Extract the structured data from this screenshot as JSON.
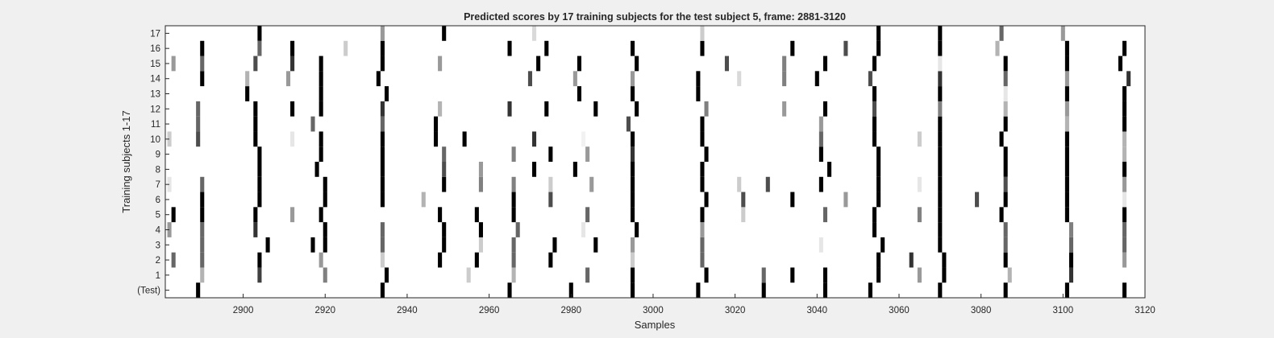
{
  "chart_data": {
    "type": "heatmap",
    "title": "Predicted scores by 17 training subjects for the test subject 5, frame: 2881-3120",
    "xlabel": "Samples",
    "ylabel": "Training subjects 1-17",
    "xlim": [
      2881,
      3120
    ],
    "xticks": [
      2900,
      2920,
      2940,
      2960,
      2980,
      3000,
      3020,
      3040,
      3060,
      3080,
      3100,
      3120
    ],
    "row_labels": [
      "(Test)",
      "1",
      "2",
      "3",
      "4",
      "5",
      "6",
      "7",
      "8",
      "9",
      "10",
      "11",
      "12",
      "13",
      "14",
      "15",
      "16",
      "17"
    ],
    "colormap": "gray, white = 0, black = 1",
    "value_range": [
      0,
      1
    ],
    "rows": [
      {
        "label": "(Test)",
        "marks": [
          [
            2889,
            1
          ],
          [
            2934,
            1
          ],
          [
            2965,
            1
          ],
          [
            2980,
            1
          ],
          [
            2995,
            1
          ],
          [
            3011,
            1
          ],
          [
            3027,
            1
          ],
          [
            3042,
            1
          ],
          [
            3053,
            1
          ],
          [
            3070,
            1
          ],
          [
            3086,
            1
          ],
          [
            3101,
            1
          ],
          [
            3115,
            1
          ]
        ]
      },
      {
        "label": "1",
        "marks": [
          [
            2890,
            0.3
          ],
          [
            2904,
            0.75
          ],
          [
            2920,
            0.5
          ],
          [
            2935,
            1
          ],
          [
            2955,
            0.2
          ],
          [
            2966,
            0.3
          ],
          [
            2984,
            0.6
          ],
          [
            2995,
            1
          ],
          [
            3013,
            1
          ],
          [
            3027,
            0.6
          ],
          [
            3034,
            1
          ],
          [
            3042,
            1
          ],
          [
            3055,
            1
          ],
          [
            3065,
            0.4
          ],
          [
            3071,
            1
          ],
          [
            3087,
            0.3
          ],
          [
            3102,
            0.8
          ]
        ]
      },
      {
        "label": "2",
        "marks": [
          [
            2883,
            0.6
          ],
          [
            2890,
            0.6
          ],
          [
            2904,
            1
          ],
          [
            2919,
            0.4
          ],
          [
            2934,
            0.2
          ],
          [
            2948,
            1
          ],
          [
            2957,
            1
          ],
          [
            2966,
            0.6
          ],
          [
            2975,
            1
          ],
          [
            2995,
            0.2
          ],
          [
            3012,
            0.6
          ],
          [
            3055,
            1
          ],
          [
            3063,
            0.8
          ],
          [
            3071,
            1
          ],
          [
            3086,
            1
          ],
          [
            3102,
            1
          ],
          [
            3115,
            0.4
          ]
        ]
      },
      {
        "label": "3",
        "marks": [
          [
            2890,
            0.6
          ],
          [
            2906,
            1
          ],
          [
            2917,
            1
          ],
          [
            2920,
            1
          ],
          [
            2934,
            0.6
          ],
          [
            2949,
            1
          ],
          [
            2958,
            0.2
          ],
          [
            2966,
            0.6
          ],
          [
            2976,
            1
          ],
          [
            2986,
            1
          ],
          [
            2995,
            0.4
          ],
          [
            3012,
            0.6
          ],
          [
            3041,
            0.1
          ],
          [
            3056,
            1
          ],
          [
            3070,
            1
          ],
          [
            3086,
            0.6
          ],
          [
            3102,
            0.6
          ],
          [
            3115,
            0.6
          ]
        ]
      },
      {
        "label": "4",
        "marks": [
          [
            2882,
            0.4
          ],
          [
            2890,
            0.6
          ],
          [
            2903,
            0.8
          ],
          [
            2920,
            1
          ],
          [
            2934,
            0.6
          ],
          [
            2949,
            1
          ],
          [
            2958,
            1
          ],
          [
            2967,
            0.6
          ],
          [
            2983,
            0.1
          ],
          [
            2996,
            1
          ],
          [
            3012,
            0.4
          ],
          [
            3054,
            1
          ],
          [
            3070,
            1
          ],
          [
            3086,
            0.6
          ],
          [
            3102,
            0.5
          ],
          [
            3115,
            0.6
          ]
        ]
      },
      {
        "label": "5",
        "marks": [
          [
            2883,
            1
          ],
          [
            2890,
            1
          ],
          [
            2903,
            1
          ],
          [
            2912,
            0.4
          ],
          [
            2919,
            1
          ],
          [
            2948,
            1
          ],
          [
            2957,
            1
          ],
          [
            2966,
            1
          ],
          [
            2984,
            0.6
          ],
          [
            2995,
            1
          ],
          [
            3012,
            1
          ],
          [
            3022,
            0.2
          ],
          [
            3042,
            0.6
          ],
          [
            3054,
            1
          ],
          [
            3065,
            0.5
          ],
          [
            3070,
            1
          ],
          [
            3085,
            1
          ],
          [
            3101,
            1
          ],
          [
            3115,
            1
          ]
        ]
      },
      {
        "label": "6",
        "marks": [
          [
            2890,
            1
          ],
          [
            2904,
            1
          ],
          [
            2920,
            1
          ],
          [
            2934,
            1
          ],
          [
            2944,
            0.3
          ],
          [
            2966,
            1
          ],
          [
            2975,
            0.7
          ],
          [
            2995,
            1
          ],
          [
            3013,
            1
          ],
          [
            3022,
            0.7
          ],
          [
            3034,
            1
          ],
          [
            3047,
            0.4
          ],
          [
            3055,
            1
          ],
          [
            3070,
            1
          ],
          [
            3079,
            0.7
          ],
          [
            3086,
            1
          ],
          [
            3101,
            1
          ],
          [
            3115,
            0.1
          ]
        ]
      },
      {
        "label": "7",
        "marks": [
          [
            2882,
            0.1
          ],
          [
            2890,
            0.6
          ],
          [
            2904,
            1
          ],
          [
            2920,
            1
          ],
          [
            2934,
            1
          ],
          [
            2949,
            1
          ],
          [
            2958,
            0.5
          ],
          [
            2966,
            0.5
          ],
          [
            2975,
            0.2
          ],
          [
            2985,
            0.4
          ],
          [
            2995,
            1
          ],
          [
            3012,
            1
          ],
          [
            3021,
            0.2
          ],
          [
            3028,
            0.7
          ],
          [
            3041,
            1
          ],
          [
            3055,
            1
          ],
          [
            3065,
            0.1
          ],
          [
            3070,
            1
          ],
          [
            3086,
            0.7
          ],
          [
            3101,
            1
          ],
          [
            3115,
            0.4
          ]
        ]
      },
      {
        "label": "8",
        "marks": [
          [
            2904,
            1
          ],
          [
            2918,
            1
          ],
          [
            2934,
            1
          ],
          [
            2949,
            0.7
          ],
          [
            2958,
            0.4
          ],
          [
            2971,
            1
          ],
          [
            2981,
            1
          ],
          [
            2995,
            1
          ],
          [
            3012,
            1
          ],
          [
            3043,
            1
          ],
          [
            3055,
            1
          ],
          [
            3070,
            1
          ],
          [
            3086,
            1
          ],
          [
            3101,
            1
          ],
          [
            3115,
            1
          ]
        ]
      },
      {
        "label": "9",
        "marks": [
          [
            2904,
            1
          ],
          [
            2919,
            1
          ],
          [
            2934,
            1
          ],
          [
            2949,
            0.6
          ],
          [
            2966,
            0.5
          ],
          [
            2975,
            1
          ],
          [
            2984,
            0.4
          ],
          [
            2995,
            0.8
          ],
          [
            3013,
            1
          ],
          [
            3041,
            1
          ],
          [
            3055,
            1
          ],
          [
            3070,
            1
          ],
          [
            3086,
            1
          ],
          [
            3101,
            1
          ],
          [
            3115,
            0.3
          ]
        ]
      },
      {
        "label": "10",
        "marks": [
          [
            2882,
            0.2
          ],
          [
            2889,
            0.7
          ],
          [
            2903,
            1
          ],
          [
            2912,
            0.1
          ],
          [
            2919,
            1
          ],
          [
            2934,
            1
          ],
          [
            2947,
            1
          ],
          [
            2954,
            1
          ],
          [
            2971,
            0.8
          ],
          [
            2983,
            0.05
          ],
          [
            2995,
            1
          ],
          [
            3012,
            1
          ],
          [
            3041,
            0.6
          ],
          [
            3054,
            1
          ],
          [
            3065,
            0.2
          ],
          [
            3070,
            1
          ],
          [
            3085,
            1
          ],
          [
            3101,
            1
          ],
          [
            3115,
            0.3
          ]
        ]
      },
      {
        "label": "11",
        "marks": [
          [
            2889,
            0.6
          ],
          [
            2903,
            1
          ],
          [
            2917,
            0.6
          ],
          [
            2934,
            0.6
          ],
          [
            2947,
            1
          ],
          [
            2994,
            0.7
          ],
          [
            3012,
            1
          ],
          [
            3041,
            0.4
          ],
          [
            3054,
            1
          ],
          [
            3070,
            1
          ],
          [
            3086,
            1
          ],
          [
            3101,
            0.3
          ],
          [
            3115,
            1
          ]
        ]
      },
      {
        "label": "12",
        "marks": [
          [
            2889,
            0.6
          ],
          [
            2903,
            1
          ],
          [
            2912,
            1
          ],
          [
            2919,
            1
          ],
          [
            2934,
            0.8
          ],
          [
            2948,
            0.3
          ],
          [
            2965,
            0.8
          ],
          [
            2974,
            1
          ],
          [
            2986,
            1
          ],
          [
            2996,
            1
          ],
          [
            3013,
            0.5
          ],
          [
            3032,
            0.4
          ],
          [
            3042,
            1
          ],
          [
            3054,
            0.7
          ],
          [
            3070,
            0.5
          ],
          [
            3086,
            0.3
          ],
          [
            3101,
            0.4
          ],
          [
            3115,
            1
          ]
        ]
      },
      {
        "label": "13",
        "marks": [
          [
            2901,
            1
          ],
          [
            2919,
            1
          ],
          [
            2935,
            1
          ],
          [
            2982,
            1
          ],
          [
            2995,
            1
          ],
          [
            3011,
            1
          ],
          [
            3054,
            1
          ],
          [
            3070,
            1
          ],
          [
            3086,
            0.1
          ],
          [
            3101,
            1
          ],
          [
            3115,
            1
          ]
        ]
      },
      {
        "label": "14",
        "marks": [
          [
            2890,
            1
          ],
          [
            2901,
            0.3
          ],
          [
            2911,
            0.4
          ],
          [
            2919,
            1
          ],
          [
            2933,
            1
          ],
          [
            2970,
            0.7
          ],
          [
            2981,
            0.4
          ],
          [
            2995,
            0.4
          ],
          [
            3011,
            1
          ],
          [
            3021,
            0.15
          ],
          [
            3032,
            0.5
          ],
          [
            3040,
            1
          ],
          [
            3053,
            0.7
          ],
          [
            3070,
            0.8
          ],
          [
            3086,
            0.6
          ],
          [
            3101,
            0.4
          ],
          [
            3116,
            0.8
          ]
        ]
      },
      {
        "label": "15",
        "marks": [
          [
            2883,
            0.4
          ],
          [
            2890,
            0.6
          ],
          [
            2903,
            0.7
          ],
          [
            2912,
            0.8
          ],
          [
            2919,
            1
          ],
          [
            2934,
            1
          ],
          [
            2948,
            0.4
          ],
          [
            2972,
            1
          ],
          [
            2982,
            1
          ],
          [
            2996,
            1
          ],
          [
            3018,
            0.7
          ],
          [
            3032,
            0.5
          ],
          [
            3042,
            1
          ],
          [
            3054,
            1
          ],
          [
            3070,
            0.1
          ],
          [
            3086,
            1
          ],
          [
            3101,
            1
          ],
          [
            3114,
            1
          ]
        ]
      },
      {
        "label": "16",
        "marks": [
          [
            2890,
            1
          ],
          [
            2904,
            0.6
          ],
          [
            2912,
            1
          ],
          [
            2925,
            0.2
          ],
          [
            2934,
            1
          ],
          [
            2965,
            1
          ],
          [
            2974,
            1
          ],
          [
            2995,
            1
          ],
          [
            3012,
            1
          ],
          [
            3034,
            1
          ],
          [
            3047,
            0.7
          ],
          [
            3055,
            1
          ],
          [
            3070,
            1
          ],
          [
            3084,
            0.3
          ],
          [
            3101,
            1
          ],
          [
            3115,
            1
          ]
        ]
      },
      {
        "label": "17",
        "marks": [
          [
            2904,
            1
          ],
          [
            2934,
            0.4
          ],
          [
            2949,
            1
          ],
          [
            2971,
            0.15
          ],
          [
            3012,
            0.2
          ],
          [
            3055,
            1
          ],
          [
            3070,
            1
          ],
          [
            3085,
            0.6
          ],
          [
            3100,
            0.4
          ]
        ]
      }
    ]
  }
}
